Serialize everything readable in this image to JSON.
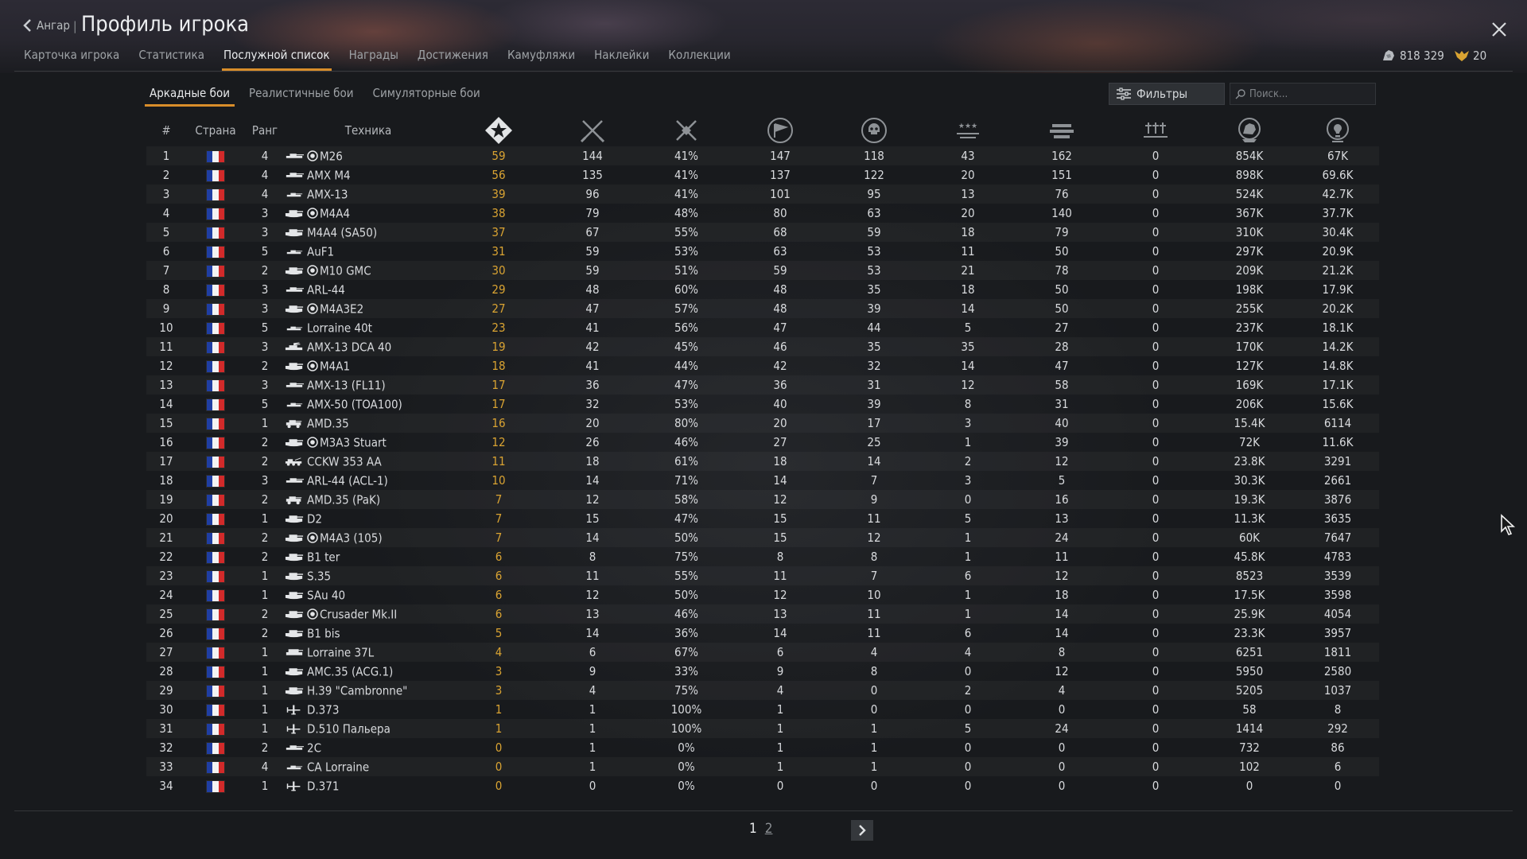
{
  "header": {
    "back_label": "Ангар",
    "separator": "|",
    "title": "Профиль игрока"
  },
  "tabs": [
    "Карточка игрока",
    "Статистика",
    "Послужной список",
    "Награды",
    "Достижения",
    "Камуфляжи",
    "Наклейки",
    "Коллекции"
  ],
  "active_tab": "Послужной список",
  "currency": {
    "silver": "818 329",
    "gold": "20"
  },
  "modes": [
    "Аркадные бои",
    "Реалистичные бои",
    "Симуляторные бои"
  ],
  "active_mode": "Аркадные бои",
  "filter": {
    "label": "Фильтры"
  },
  "search": {
    "placeholder": "Поиск..."
  },
  "columns": {
    "num": "#",
    "country": "Страна",
    "rank": "Ранг",
    "vehicle": "Техника"
  },
  "stat_icons": [
    "victories-icon",
    "battles-icon",
    "win-rate-icon",
    "respawns-icon",
    "deaths-icon",
    "air-kills-icon",
    "ground-kills-icon",
    "naval-kills-icon",
    "experience-icon",
    "research-points-icon"
  ],
  "colors": {
    "accent": "#d88d2a",
    "wins": "#d9a332",
    "flag_blue": "#1f3ea3",
    "flag_white": "#f3f3f3",
    "flag_red": "#d22a2a"
  },
  "rows": [
    {
      "n": "1",
      "rank": "4",
      "type": "tank",
      "prem": true,
      "name": "M26",
      "wins": "59",
      "battles": "144",
      "wr": "41%",
      "resp": "147",
      "deaths": "118",
      "air": "43",
      "ground": "162",
      "naval": "0",
      "exp": "854K",
      "rp": "67K"
    },
    {
      "n": "2",
      "rank": "4",
      "type": "tank",
      "prem": false,
      "name": "AMX M4",
      "wins": "56",
      "battles": "135",
      "wr": "41%",
      "resp": "137",
      "deaths": "122",
      "air": "20",
      "ground": "151",
      "naval": "0",
      "exp": "898K",
      "rp": "69.6K"
    },
    {
      "n": "3",
      "rank": "4",
      "type": "light",
      "prem": false,
      "name": "AMX-13",
      "wins": "39",
      "battles": "96",
      "wr": "41%",
      "resp": "101",
      "deaths": "95",
      "air": "13",
      "ground": "76",
      "naval": "0",
      "exp": "524K",
      "rp": "42.7K"
    },
    {
      "n": "4",
      "rank": "3",
      "type": "heavy",
      "prem": true,
      "name": "M4A4",
      "wins": "38",
      "battles": "79",
      "wr": "48%",
      "resp": "80",
      "deaths": "63",
      "air": "20",
      "ground": "140",
      "naval": "0",
      "exp": "367K",
      "rp": "37.7K"
    },
    {
      "n": "5",
      "rank": "3",
      "type": "heavy",
      "prem": false,
      "name": "M4A4 (SA50)",
      "wins": "37",
      "battles": "67",
      "wr": "55%",
      "resp": "68",
      "deaths": "59",
      "air": "18",
      "ground": "79",
      "naval": "0",
      "exp": "310K",
      "rp": "30.4K"
    },
    {
      "n": "6",
      "rank": "5",
      "type": "light",
      "prem": false,
      "name": "AuF1",
      "wins": "31",
      "battles": "59",
      "wr": "53%",
      "resp": "63",
      "deaths": "53",
      "air": "11",
      "ground": "50",
      "naval": "0",
      "exp": "297K",
      "rp": "20.9K"
    },
    {
      "n": "7",
      "rank": "2",
      "type": "heavy",
      "prem": true,
      "name": "M10 GMC",
      "wins": "30",
      "battles": "59",
      "wr": "51%",
      "resp": "59",
      "deaths": "53",
      "air": "21",
      "ground": "78",
      "naval": "0",
      "exp": "209K",
      "rp": "21.2K"
    },
    {
      "n": "8",
      "rank": "3",
      "type": "tank",
      "prem": false,
      "name": "ARL-44",
      "wins": "29",
      "battles": "48",
      "wr": "60%",
      "resp": "48",
      "deaths": "35",
      "air": "18",
      "ground": "50",
      "naval": "0",
      "exp": "198K",
      "rp": "17.9K"
    },
    {
      "n": "9",
      "rank": "3",
      "type": "heavy",
      "prem": true,
      "name": "M4A3E2",
      "wins": "27",
      "battles": "47",
      "wr": "57%",
      "resp": "48",
      "deaths": "39",
      "air": "14",
      "ground": "50",
      "naval": "0",
      "exp": "255K",
      "rp": "20.2K"
    },
    {
      "n": "10",
      "rank": "5",
      "type": "light",
      "prem": false,
      "name": "Lorraine 40t",
      "wins": "23",
      "battles": "41",
      "wr": "56%",
      "resp": "47",
      "deaths": "44",
      "air": "5",
      "ground": "27",
      "naval": "0",
      "exp": "237K",
      "rp": "18.1K"
    },
    {
      "n": "11",
      "rank": "3",
      "type": "spaa",
      "prem": false,
      "name": "AMX-13 DCA 40",
      "wins": "19",
      "battles": "42",
      "wr": "45%",
      "resp": "46",
      "deaths": "35",
      "air": "35",
      "ground": "28",
      "naval": "0",
      "exp": "170K",
      "rp": "14.2K"
    },
    {
      "n": "12",
      "rank": "2",
      "type": "heavy",
      "prem": true,
      "name": "M4A1",
      "wins": "18",
      "battles": "41",
      "wr": "44%",
      "resp": "42",
      "deaths": "32",
      "air": "14",
      "ground": "47",
      "naval": "0",
      "exp": "127K",
      "rp": "14.8K"
    },
    {
      "n": "13",
      "rank": "3",
      "type": "tank",
      "prem": false,
      "name": "AMX-13 (FL11)",
      "wins": "17",
      "battles": "36",
      "wr": "47%",
      "resp": "36",
      "deaths": "31",
      "air": "12",
      "ground": "58",
      "naval": "0",
      "exp": "169K",
      "rp": "17.1K"
    },
    {
      "n": "14",
      "rank": "5",
      "type": "light",
      "prem": false,
      "name": "AMX-50 (TOA100)",
      "wins": "17",
      "battles": "32",
      "wr": "53%",
      "resp": "40",
      "deaths": "39",
      "air": "8",
      "ground": "31",
      "naval": "0",
      "exp": "206K",
      "rp": "15.6K"
    },
    {
      "n": "15",
      "rank": "1",
      "type": "car",
      "prem": false,
      "name": "AMD.35",
      "wins": "16",
      "battles": "20",
      "wr": "80%",
      "resp": "20",
      "deaths": "17",
      "air": "3",
      "ground": "40",
      "naval": "0",
      "exp": "15.4K",
      "rp": "6114"
    },
    {
      "n": "16",
      "rank": "2",
      "type": "heavy",
      "prem": true,
      "name": "M3A3 Stuart",
      "wins": "12",
      "battles": "26",
      "wr": "46%",
      "resp": "27",
      "deaths": "25",
      "air": "1",
      "ground": "39",
      "naval": "0",
      "exp": "72K",
      "rp": "11.6K"
    },
    {
      "n": "17",
      "rank": "2",
      "type": "aa",
      "prem": false,
      "name": "CCKW 353 AA",
      "wins": "11",
      "battles": "18",
      "wr": "61%",
      "resp": "18",
      "deaths": "14",
      "air": "2",
      "ground": "12",
      "naval": "0",
      "exp": "23.8K",
      "rp": "3291"
    },
    {
      "n": "18",
      "rank": "3",
      "type": "tank",
      "prem": false,
      "name": "ARL-44 (ACL-1)",
      "wins": "10",
      "battles": "14",
      "wr": "71%",
      "resp": "14",
      "deaths": "7",
      "air": "3",
      "ground": "5",
      "naval": "0",
      "exp": "30.3K",
      "rp": "2661"
    },
    {
      "n": "19",
      "rank": "2",
      "type": "car",
      "prem": false,
      "name": "AMD.35 (PaK)",
      "wins": "7",
      "battles": "12",
      "wr": "58%",
      "resp": "12",
      "deaths": "9",
      "air": "0",
      "ground": "16",
      "naval": "0",
      "exp": "19.3K",
      "rp": "3876"
    },
    {
      "n": "20",
      "rank": "1",
      "type": "heavy",
      "prem": false,
      "name": "D2",
      "wins": "7",
      "battles": "15",
      "wr": "47%",
      "resp": "15",
      "deaths": "11",
      "air": "5",
      "ground": "13",
      "naval": "0",
      "exp": "11.3K",
      "rp": "3635"
    },
    {
      "n": "21",
      "rank": "2",
      "type": "heavy",
      "prem": true,
      "name": "M4A3 (105)",
      "wins": "7",
      "battles": "14",
      "wr": "50%",
      "resp": "15",
      "deaths": "12",
      "air": "1",
      "ground": "24",
      "naval": "0",
      "exp": "60K",
      "rp": "7647"
    },
    {
      "n": "22",
      "rank": "2",
      "type": "heavy",
      "prem": false,
      "name": "B1 ter",
      "wins": "6",
      "battles": "8",
      "wr": "75%",
      "resp": "8",
      "deaths": "8",
      "air": "1",
      "ground": "11",
      "naval": "0",
      "exp": "45.8K",
      "rp": "4783"
    },
    {
      "n": "23",
      "rank": "1",
      "type": "heavy",
      "prem": false,
      "name": "S.35",
      "wins": "6",
      "battles": "11",
      "wr": "55%",
      "resp": "11",
      "deaths": "7",
      "air": "6",
      "ground": "12",
      "naval": "0",
      "exp": "8523",
      "rp": "3539"
    },
    {
      "n": "24",
      "rank": "1",
      "type": "heavy",
      "prem": false,
      "name": "SAu 40",
      "wins": "6",
      "battles": "12",
      "wr": "50%",
      "resp": "12",
      "deaths": "10",
      "air": "1",
      "ground": "18",
      "naval": "0",
      "exp": "17.5K",
      "rp": "3598"
    },
    {
      "n": "25",
      "rank": "2",
      "type": "heavy",
      "prem": true,
      "name": "Crusader Mk.II",
      "wins": "6",
      "battles": "13",
      "wr": "46%",
      "resp": "13",
      "deaths": "11",
      "air": "1",
      "ground": "14",
      "naval": "0",
      "exp": "25.9K",
      "rp": "4054"
    },
    {
      "n": "26",
      "rank": "2",
      "type": "heavy",
      "prem": false,
      "name": "B1 bis",
      "wins": "5",
      "battles": "14",
      "wr": "36%",
      "resp": "14",
      "deaths": "11",
      "air": "6",
      "ground": "14",
      "naval": "0",
      "exp": "23.3K",
      "rp": "3957"
    },
    {
      "n": "27",
      "rank": "1",
      "type": "spg",
      "prem": false,
      "name": "Lorraine 37L",
      "wins": "4",
      "battles": "6",
      "wr": "67%",
      "resp": "6",
      "deaths": "4",
      "air": "4",
      "ground": "8",
      "naval": "0",
      "exp": "6251",
      "rp": "1811"
    },
    {
      "n": "28",
      "rank": "1",
      "type": "heavy",
      "prem": false,
      "name": "AMC.35 (ACG.1)",
      "wins": "3",
      "battles": "9",
      "wr": "33%",
      "resp": "9",
      "deaths": "8",
      "air": "0",
      "ground": "12",
      "naval": "0",
      "exp": "5950",
      "rp": "2580"
    },
    {
      "n": "29",
      "rank": "1",
      "type": "heavy",
      "prem": false,
      "name": "H.39 \"Cambronne\"",
      "wins": "3",
      "battles": "4",
      "wr": "75%",
      "resp": "4",
      "deaths": "0",
      "air": "2",
      "ground": "4",
      "naval": "0",
      "exp": "5205",
      "rp": "1037"
    },
    {
      "n": "30",
      "rank": "1",
      "type": "plane",
      "prem": false,
      "name": "D.373",
      "wins": "1",
      "battles": "1",
      "wr": "100%",
      "resp": "1",
      "deaths": "0",
      "air": "0",
      "ground": "0",
      "naval": "0",
      "exp": "58",
      "rp": "8"
    },
    {
      "n": "31",
      "rank": "1",
      "type": "plane",
      "prem": false,
      "name": "D.510 Пальера",
      "wins": "1",
      "battles": "1",
      "wr": "100%",
      "resp": "1",
      "deaths": "1",
      "air": "5",
      "ground": "24",
      "naval": "0",
      "exp": "1414",
      "rp": "292"
    },
    {
      "n": "32",
      "rank": "2",
      "type": "tank",
      "prem": false,
      "name": "2C",
      "wins": "0",
      "battles": "1",
      "wr": "0%",
      "resp": "1",
      "deaths": "1",
      "air": "0",
      "ground": "0",
      "naval": "0",
      "exp": "732",
      "rp": "86"
    },
    {
      "n": "33",
      "rank": "4",
      "type": "light",
      "prem": false,
      "name": "CA Lorraine",
      "wins": "0",
      "battles": "1",
      "wr": "0%",
      "resp": "1",
      "deaths": "1",
      "air": "0",
      "ground": "0",
      "naval": "0",
      "exp": "102",
      "rp": "6"
    },
    {
      "n": "34",
      "rank": "1",
      "type": "plane",
      "prem": false,
      "name": "D.371",
      "wins": "0",
      "battles": "0",
      "wr": "0%",
      "resp": "0",
      "deaths": "0",
      "air": "0",
      "ground": "0",
      "naval": "0",
      "exp": "0",
      "rp": "0"
    }
  ],
  "pagination": {
    "current": "1",
    "other": "2"
  }
}
